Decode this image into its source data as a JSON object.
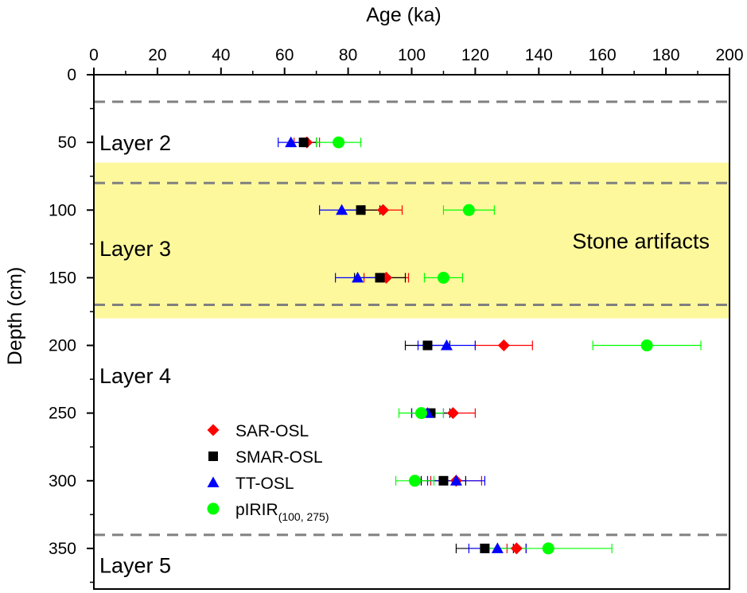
{
  "chart_data": {
    "type": "scatter",
    "xlabel": "Age (ka)",
    "ylabel": "Depth (cm)",
    "xlim": [
      0,
      200
    ],
    "ylim": [
      0,
      380
    ],
    "y_inverted": true,
    "x_axis_position": "top",
    "x_ticks": [
      0,
      20,
      40,
      60,
      80,
      100,
      120,
      140,
      160,
      180,
      200
    ],
    "y_ticks": [
      0,
      50,
      100,
      150,
      200,
      250,
      300,
      350
    ],
    "grid": false,
    "legend_position": "lower-left",
    "highlight_band": {
      "depth_from": 65,
      "depth_to": 180,
      "color": "#fdf89c",
      "label": "Stone artifacts"
    },
    "boundaries": [
      20,
      80,
      170,
      340
    ],
    "layers": [
      {
        "label": "Layer 2",
        "depth": 50
      },
      {
        "label": "Layer 3",
        "depth": 128
      },
      {
        "label": "Layer 4",
        "depth": 222
      },
      {
        "label": "Layer 5",
        "depth": 362
      }
    ],
    "series": [
      {
        "name": "SAR-OSL",
        "marker": "diamond",
        "color": "#ff0000",
        "points": [
          {
            "depth": 50,
            "age": 67,
            "err": 4
          },
          {
            "depth": 100,
            "age": 91,
            "err": 6
          },
          {
            "depth": 150,
            "age": 92,
            "err": 7
          },
          {
            "depth": 200,
            "age": 129,
            "err": 9
          },
          {
            "depth": 250,
            "age": 113,
            "err": 7
          },
          {
            "depth": 300,
            "age": 114,
            "err": 8
          },
          {
            "depth": 350,
            "age": 133,
            "err": 3
          }
        ]
      },
      {
        "name": "SMAR-OSL",
        "marker": "square",
        "color": "#000000",
        "points": [
          {
            "depth": 50,
            "age": 66,
            "err": 4
          },
          {
            "depth": 100,
            "age": 84,
            "err": 6
          },
          {
            "depth": 150,
            "age": 90,
            "err": 8
          },
          {
            "depth": 200,
            "age": 105,
            "err": 7
          },
          {
            "depth": 250,
            "age": 106,
            "err": 6
          },
          {
            "depth": 300,
            "age": 110,
            "err": 7
          },
          {
            "depth": 350,
            "age": 123,
            "err": 9
          }
        ]
      },
      {
        "name": "TT-OSL",
        "marker": "triangle",
        "color": "#0000ff",
        "points": [
          {
            "depth": 50,
            "age": 62,
            "err": 4
          },
          {
            "depth": 100,
            "age": 78,
            "err": 7
          },
          {
            "depth": 150,
            "age": 83,
            "err": 7
          },
          {
            "depth": 200,
            "age": 111,
            "err": 9
          },
          {
            "depth": 250,
            "age": 105,
            "err": 5
          },
          {
            "depth": 300,
            "age": 114,
            "err": 9
          },
          {
            "depth": 350,
            "age": 127,
            "err": 9
          }
        ]
      },
      {
        "name": "pIRIR",
        "name_subscript": "(100, 275)",
        "marker": "circle",
        "color": "#00ff00",
        "points": [
          {
            "depth": 50,
            "age": 77,
            "err": 7
          },
          {
            "depth": 100,
            "age": 118,
            "err": 8
          },
          {
            "depth": 150,
            "age": 110,
            "err": 6
          },
          {
            "depth": 200,
            "age": 174,
            "err": 17
          },
          {
            "depth": 250,
            "age": 103,
            "err": 7
          },
          {
            "depth": 300,
            "age": 101,
            "err": 6
          },
          {
            "depth": 350,
            "age": 143,
            "err": 20
          }
        ]
      }
    ]
  }
}
